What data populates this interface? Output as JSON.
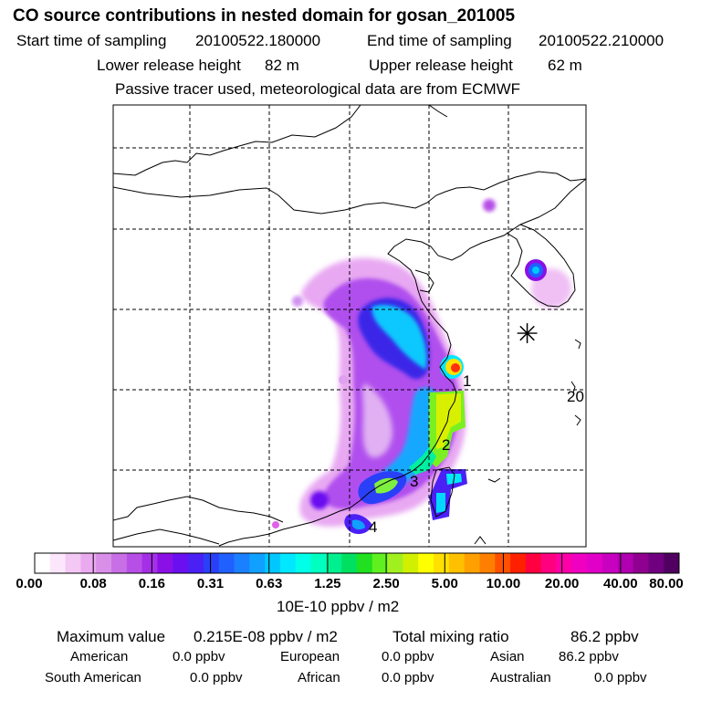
{
  "header": {
    "title": "CO  source contributions in nested domain for gosan_201005",
    "start_label": "Start time of sampling",
    "start_value": "20100522.180000",
    "end_label": "End time of sampling",
    "end_value": "20100522.210000",
    "lower_label": "Lower release height",
    "lower_value": "82 m",
    "upper_label": "Upper release height",
    "upper_value": "62 m",
    "subtitle": "Passive tracer used, meteorological data are from ECMWF"
  },
  "map": {
    "markers": [
      "1",
      "2",
      "3",
      "4"
    ],
    "side_label": "20",
    "receptor_symbol": "✳"
  },
  "colorbar": {
    "ticks": [
      "0.00",
      "0.08",
      "0.16",
      "0.31",
      "0.63",
      "1.25",
      "2.50",
      "5.00",
      "10.00",
      "20.00",
      "40.00",
      "80.00"
    ],
    "units": "10E-10 ppbv / m2",
    "colors": [
      "#ffffff",
      "#fbe6fb",
      "#f3c8f5",
      "#eaaaf0",
      "#d98ee8",
      "#c86fe6",
      "#b74fe6",
      "#a52fe6",
      "#8a10e6",
      "#6a10f0",
      "#4a20f5",
      "#2a40f8",
      "#2060ff",
      "#1a80ff",
      "#10a0ff",
      "#00c8ff",
      "#00e8ff",
      "#00ffe8",
      "#00ffc0",
      "#00f090",
      "#00e060",
      "#20e020",
      "#60f020",
      "#a0f020",
      "#d0f000",
      "#ffff00",
      "#ffe000",
      "#ffc000",
      "#ffa000",
      "#ff8000",
      "#ff5000",
      "#ff2000",
      "#ff0040",
      "#ff0080",
      "#ff00a8",
      "#f000c0",
      "#e000c8",
      "#c800c0",
      "#b000b0",
      "#900090",
      "#700080",
      "#500060"
    ]
  },
  "summary": {
    "max_label": "Maximum value",
    "max_value": "0.215E-08 ppbv / m2",
    "total_label": "Total mixing ratio",
    "total_value": "86.2 ppbv",
    "rows": [
      [
        {
          "name": "American",
          "value": "0.0 ppbv"
        },
        {
          "name": "European",
          "value": "0.0 ppbv"
        },
        {
          "name": "Asian",
          "value": "86.2 ppbv"
        }
      ],
      [
        {
          "name": "South American",
          "value": "0.0 ppbv"
        },
        {
          "name": "African",
          "value": "0.0 ppbv"
        },
        {
          "name": "Australian",
          "value": "0.0 ppbv"
        }
      ]
    ]
  }
}
